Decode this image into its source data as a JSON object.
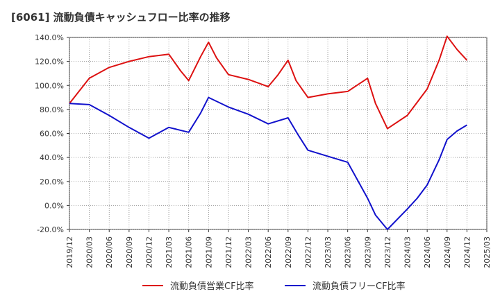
{
  "chart_data": {
    "type": "line",
    "title": "[6061]  流動負債キャッシュフロー比率の推移",
    "xlabel": "",
    "ylabel": "",
    "ylim": [
      -20,
      140
    ],
    "yticks": [
      "140.0%",
      "120.0%",
      "100.0%",
      "80.0%",
      "60.0%",
      "40.0%",
      "20.0%",
      "0.0%",
      "-20.0%"
    ],
    "ytick_values": [
      140,
      120,
      100,
      80,
      60,
      40,
      20,
      0,
      -20
    ],
    "xticks": [
      "2019/12",
      "2020/03",
      "2020/06",
      "2020/09",
      "2020/12",
      "2021/03",
      "2021/06",
      "2021/09",
      "2021/12",
      "2022/03",
      "2022/06",
      "2022/09",
      "2022/12",
      "2023/03",
      "2023/06",
      "2023/09",
      "2023/12",
      "2024/03",
      "2024/06",
      "2024/09",
      "2024/12",
      "2025/03"
    ],
    "grid": true,
    "legend_position": "bottom",
    "series": [
      {
        "name": "流動負債営業CF比率",
        "color": "#dd1111",
        "points": [
          [
            0,
            85
          ],
          [
            1,
            106
          ],
          [
            2,
            115
          ],
          [
            3,
            120
          ],
          [
            4,
            124
          ],
          [
            5,
            126
          ],
          [
            5.6,
            112
          ],
          [
            6,
            104
          ],
          [
            6.6,
            124
          ],
          [
            7,
            136
          ],
          [
            7.4,
            123
          ],
          [
            8,
            109
          ],
          [
            9,
            105
          ],
          [
            10,
            99
          ],
          [
            10.5,
            109
          ],
          [
            11,
            121
          ],
          [
            11.4,
            104
          ],
          [
            12,
            90
          ],
          [
            13,
            93
          ],
          [
            14,
            95
          ],
          [
            15,
            106
          ],
          [
            15.4,
            85
          ],
          [
            16,
            64
          ],
          [
            17,
            75
          ],
          [
            17.5,
            86
          ],
          [
            18,
            97
          ],
          [
            18.6,
            121
          ],
          [
            19,
            141
          ],
          [
            19.5,
            130
          ],
          [
            20,
            121
          ]
        ]
      },
      {
        "name": "流動負債フリーCF比率",
        "color": "#1111cc",
        "points": [
          [
            0,
            85
          ],
          [
            1,
            84
          ],
          [
            2,
            75
          ],
          [
            3,
            65
          ],
          [
            4,
            56
          ],
          [
            5,
            65
          ],
          [
            6,
            61
          ],
          [
            6.6,
            77
          ],
          [
            7,
            90
          ],
          [
            8,
            82
          ],
          [
            9,
            76
          ],
          [
            10,
            68
          ],
          [
            11,
            73
          ],
          [
            11.5,
            59
          ],
          [
            12,
            46
          ],
          [
            13,
            41
          ],
          [
            14,
            36
          ],
          [
            15,
            6
          ],
          [
            15.4,
            -8
          ],
          [
            16,
            -20
          ],
          [
            17,
            -3
          ],
          [
            17.5,
            6
          ],
          [
            18,
            17
          ],
          [
            18.6,
            38
          ],
          [
            19,
            55
          ],
          [
            19.5,
            62
          ],
          [
            20,
            67
          ]
        ]
      }
    ]
  }
}
